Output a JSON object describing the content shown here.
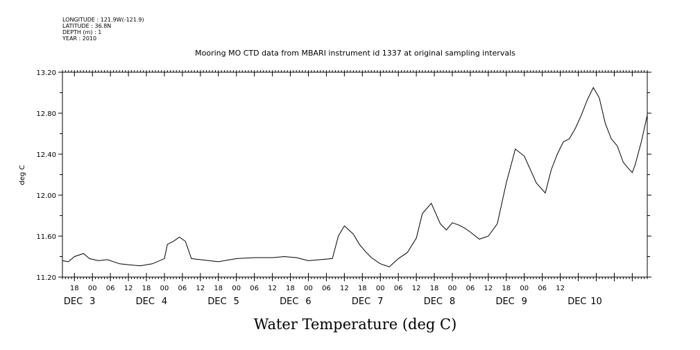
{
  "header": {
    "longitude": "LONGITUDE : 121.9W(-121.9)",
    "latitude": "LATITUDE : 36.8N",
    "depth": "DEPTH (m) : 1",
    "year": "YEAR : 2010"
  },
  "chart_data": {
    "type": "line",
    "title": "Mooring MO CTD data from MBARI instrument id 1337 at original sampling intervals",
    "xlabel": "Water Temperature (deg C)",
    "ylabel": "deg C",
    "xlim": [
      "2010-12-02 14:00",
      "2010-12-10 17:00"
    ],
    "ylim": [
      11.2,
      13.2
    ],
    "yticks": [
      11.2,
      11.6,
      12.0,
      12.4,
      12.8,
      13.2
    ],
    "ytick_labels": [
      "11.20",
      "11.60",
      "12.00",
      "12.40",
      "12.80",
      "13.20"
    ],
    "xtick_hour_labels": [
      "18",
      "00",
      "06",
      "12",
      "18",
      "00",
      "06",
      "12",
      "18",
      "00",
      "06",
      "12",
      "18",
      "00",
      "06",
      "12",
      "18",
      "00",
      "06",
      "12",
      "18",
      "00",
      "06",
      "12",
      "18",
      "00",
      "06",
      "12"
    ],
    "xtick_day_labels": [
      "DEC 3",
      "DEC 4",
      "DEC 5",
      "DEC 6",
      "DEC 7",
      "DEC 8",
      "DEC 9",
      "DEC 10"
    ],
    "grid": false,
    "series": [
      {
        "x": [
          "2010-12-02 14:00",
          "2010-12-02 16:00",
          "2010-12-02 18:00",
          "2010-12-02 21:00",
          "2010-12-02 23:00",
          "2010-12-03 02:00",
          "2010-12-03 05:00",
          "2010-12-03 09:00",
          "2010-12-03 12:00",
          "2010-12-03 16:00",
          "2010-12-03 20:00",
          "2010-12-04 00:00",
          "2010-12-04 01:00",
          "2010-12-04 03:00",
          "2010-12-04 05:00",
          "2010-12-04 07:00",
          "2010-12-04 09:00",
          "2010-12-04 12:00",
          "2010-12-04 18:00",
          "2010-12-05 00:00",
          "2010-12-05 06:00",
          "2010-12-05 12:00",
          "2010-12-05 16:00",
          "2010-12-05 20:00",
          "2010-12-06 00:00",
          "2010-12-06 04:00",
          "2010-12-06 08:00",
          "2010-12-06 10:00",
          "2010-12-06 12:00",
          "2010-12-06 15:00",
          "2010-12-06 17:00",
          "2010-12-06 19:00",
          "2010-12-06 21:00",
          "2010-12-07 00:00",
          "2010-12-07 03:00",
          "2010-12-07 06:00",
          "2010-12-07 09:00",
          "2010-12-07 12:00",
          "2010-12-07 14:00",
          "2010-12-07 17:00",
          "2010-12-07 20:00",
          "2010-12-07 22:00",
          "2010-12-08 00:00",
          "2010-12-08 02:00",
          "2010-12-08 04:00",
          "2010-12-08 06:00",
          "2010-12-08 09:00",
          "2010-12-08 12:00",
          "2010-12-08 15:00",
          "2010-12-08 18:00",
          "2010-12-08 21:00",
          "2010-12-09 00:00",
          "2010-12-09 02:00",
          "2010-12-09 04:00",
          "2010-12-09 07:00",
          "2010-12-09 09:00",
          "2010-12-09 11:00",
          "2010-12-09 13:00",
          "2010-12-09 15:00",
          "2010-12-09 17:00",
          "2010-12-09 19:00",
          "2010-12-09 21:00",
          "2010-12-09 23:00",
          "2010-12-10 01:00",
          "2010-12-10 03:00",
          "2010-12-10 05:00",
          "2010-12-10 07:00",
          "2010-12-10 09:00",
          "2010-12-10 11:00",
          "2010-12-10 12:00",
          "2010-12-10 13:00",
          "2010-12-10 15:00",
          "2010-12-10 17:00"
        ],
        "y": [
          11.36,
          11.35,
          11.4,
          11.43,
          11.38,
          11.36,
          11.37,
          11.33,
          11.32,
          11.31,
          11.33,
          11.38,
          11.52,
          11.55,
          11.59,
          11.55,
          11.38,
          11.37,
          11.35,
          11.38,
          11.39,
          11.39,
          11.4,
          11.39,
          11.36,
          11.37,
          11.38,
          11.6,
          11.7,
          11.62,
          11.52,
          11.45,
          11.39,
          11.33,
          11.3,
          11.38,
          11.44,
          11.58,
          11.82,
          11.92,
          11.72,
          11.66,
          11.73,
          11.71,
          11.68,
          11.64,
          11.57,
          11.6,
          11.72,
          12.12,
          12.45,
          12.38,
          12.25,
          12.12,
          12.02,
          12.25,
          12.4,
          12.52,
          12.55,
          12.65,
          12.78,
          12.93,
          13.05,
          12.95,
          12.7,
          12.55,
          12.48,
          12.32,
          12.25,
          12.22,
          12.3,
          12.52,
          12.78
        ]
      }
    ]
  }
}
